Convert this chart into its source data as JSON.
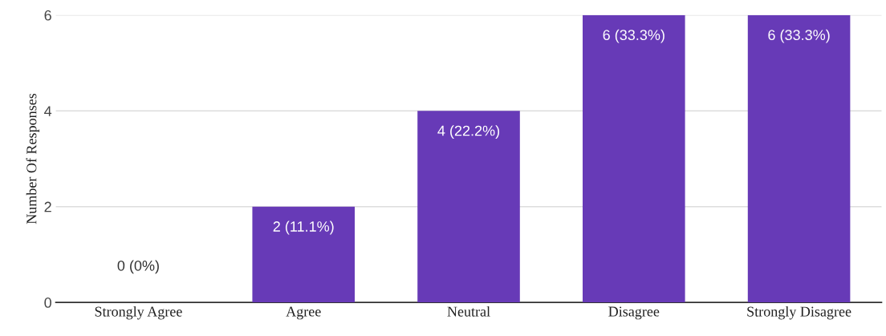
{
  "chart_data": {
    "type": "bar",
    "categories": [
      "Strongly Agree",
      "Agree",
      "Neutral",
      "Disagree",
      "Strongly Disagree"
    ],
    "values": [
      0,
      2,
      4,
      6,
      6
    ],
    "value_labels": [
      "0 (0%)",
      "2 (11.1%)",
      "4 (22.2%)",
      "6 (33.3%)",
      "6 (33.3%)"
    ],
    "color": "#673ab7",
    "ylabel": "Number Of Responses",
    "ylim": [
      0,
      6
    ],
    "yticks": [
      0,
      2,
      4,
      6
    ],
    "grid": "y",
    "legend": false
  }
}
